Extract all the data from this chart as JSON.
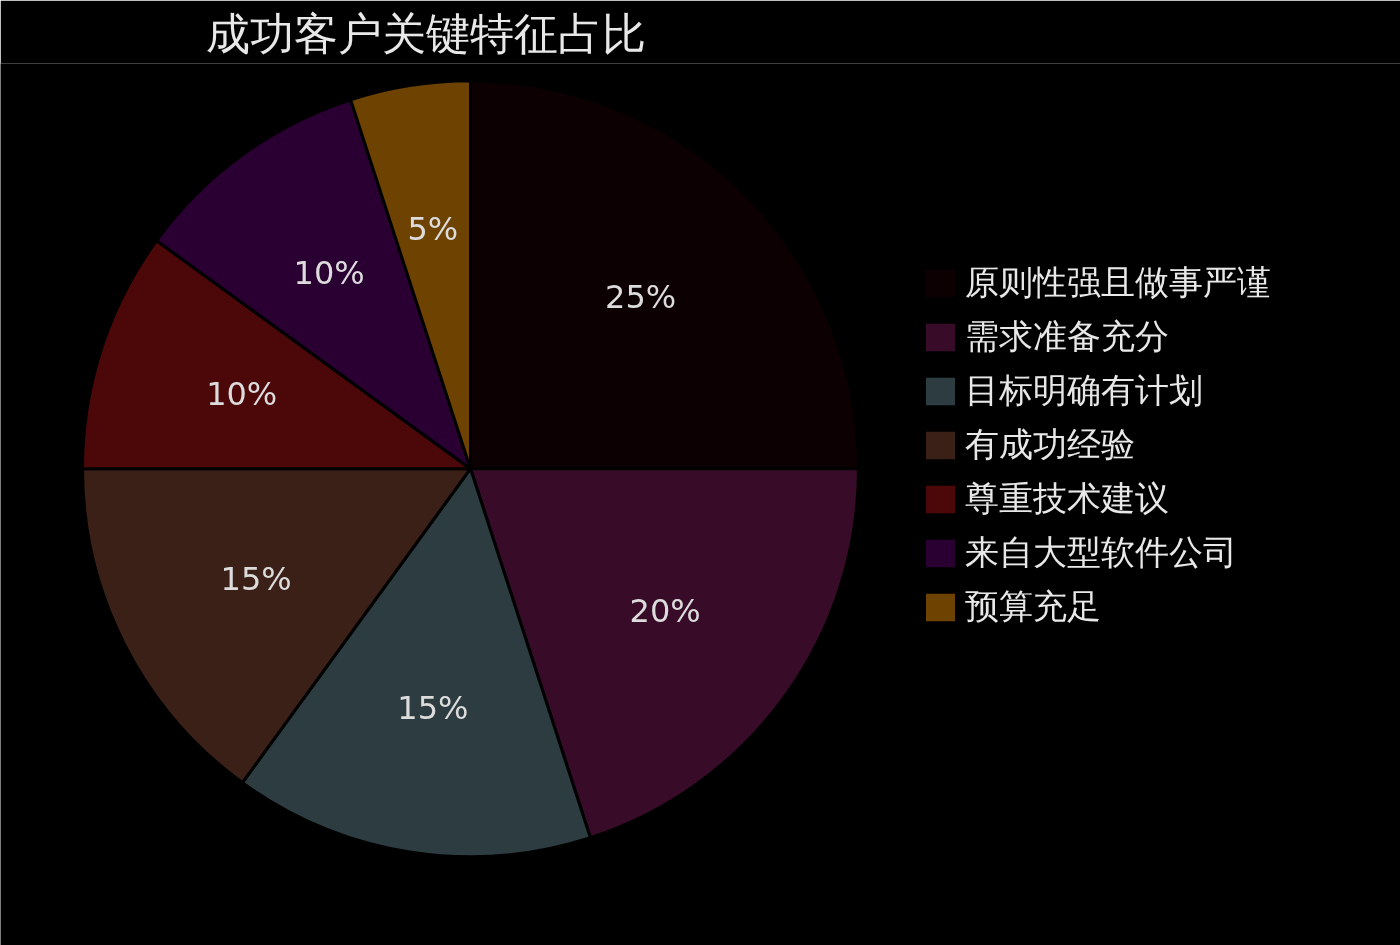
{
  "chart_data": {
    "type": "pie",
    "title": "成功客户关键特征占比",
    "categories": [
      "原则性强且做事严谨",
      "需求准备充分",
      "目标明确有计划",
      "有成功经验",
      "尊重技术建议",
      "来自大型软件公司",
      "预算充足"
    ],
    "values": [
      25,
      20,
      15,
      15,
      10,
      10,
      5
    ],
    "value_labels": [
      "25%",
      "20%",
      "15%",
      "15%",
      "10%",
      "10%",
      "5%"
    ],
    "colors": [
      "#0c0002",
      "#380c28",
      "#2d3c41",
      "#3a2016",
      "#4c0809",
      "#2a0033",
      "#6e4200"
    ],
    "legend": "right"
  }
}
